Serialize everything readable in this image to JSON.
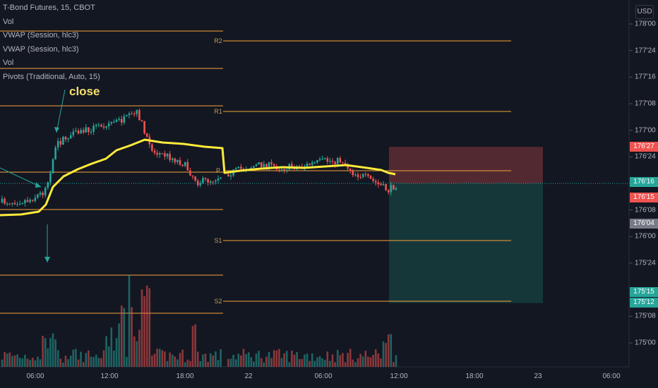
{
  "header": {
    "symbol": "T-Bond Futures, 15, CBOT",
    "indicators": [
      "Vol",
      "VWAP (Session, hlc3)",
      "VWAP (Session, hlc3)",
      "Vol",
      "Pivots (Traditional, Auto, 15)"
    ],
    "currency": "USD"
  },
  "annotation": "close",
  "colors": {
    "background": "#131722",
    "up": "#26a69a",
    "down": "#ef5350",
    "pivot": "#f7a33a",
    "vwap": "#ffeb3b",
    "stop_zone": "#5b2b33",
    "target_zone": "#163b3c"
  },
  "chart_data": {
    "type": "candlestick",
    "y_ticks": [
      "178'00",
      "177'24",
      "177'16",
      "177'08",
      "177'00",
      "176'24",
      "176'16",
      "176'08",
      "176'00",
      "175'24",
      "175'15",
      "175'08",
      "175'00"
    ],
    "x_ticks": [
      "06:00",
      "12:00",
      "18:00",
      "22",
      "06:00",
      "12:00",
      "18:00",
      "23",
      "06:00"
    ],
    "pivots": [
      {
        "label": "R2"
      },
      {
        "label": "R1"
      },
      {
        "label": "P"
      },
      {
        "label": "S1"
      },
      {
        "label": "S2"
      }
    ],
    "price_badges": [
      {
        "text": "176'27",
        "color": "#ef5350"
      },
      {
        "text": "176'16",
        "color": "#26a69a"
      },
      {
        "text": "176'15",
        "color": "#ef5350"
      },
      {
        "text": "176'04",
        "color": "#787b86"
      },
      {
        "text": "175'15",
        "color": "#26a69a"
      },
      {
        "text": "175'12",
        "color": "#26a69a"
      }
    ],
    "last_price": "176'16"
  }
}
